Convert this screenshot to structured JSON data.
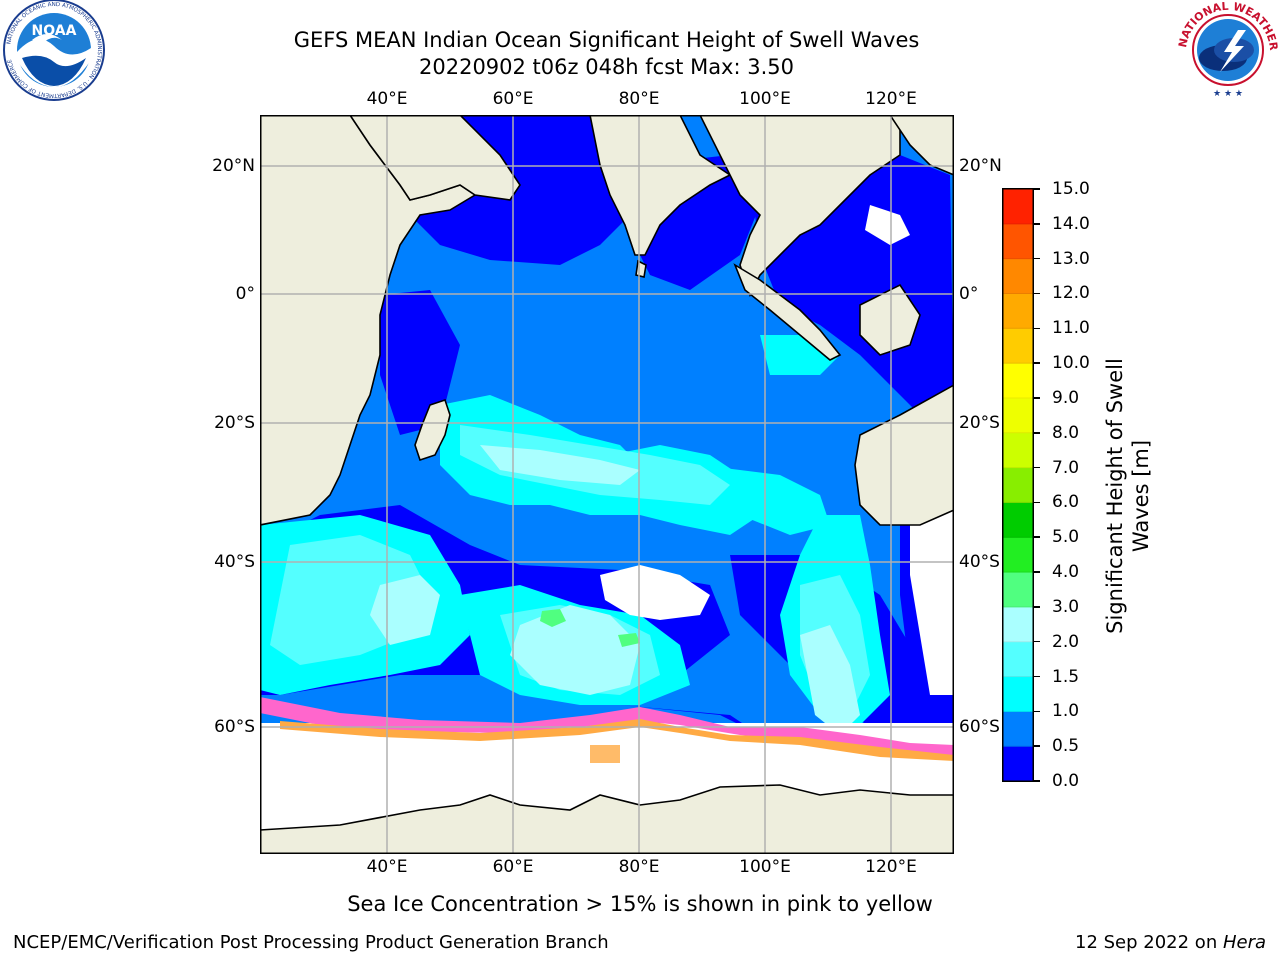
{
  "title": {
    "line1": "GEFS MEAN Indian Ocean Significant Height of Swell Waves",
    "line2": "20220902 t06z 048h fcst   Max: 3.50"
  },
  "logos": {
    "noara": {
      "icon": "noaa-logo-icon",
      "text": "NOAA",
      "ring_text": "NATIONAL OCEANIC AND ATMOSPHERIC ADMINISTRATION · U.S. DEPARTMENT OF COMMERCE"
    },
    "nws": {
      "icon": "nws-logo-icon",
      "ring_text": "NATIONAL WEATHER SERVICE"
    }
  },
  "map": {
    "lon_ticks": [
      {
        "value": 40,
        "label": "40°E"
      },
      {
        "value": 60,
        "label": "60°E"
      },
      {
        "value": 80,
        "label": "80°E"
      },
      {
        "value": 100,
        "label": "100°E"
      },
      {
        "value": 120,
        "label": "120°E"
      }
    ],
    "lat_ticks": [
      {
        "value": 20,
        "label": "20°N"
      },
      {
        "value": 0,
        "label": "0°"
      },
      {
        "value": -20,
        "label": "20°S"
      },
      {
        "value": -40,
        "label": "40°S"
      },
      {
        "value": -60,
        "label": "60°S"
      }
    ],
    "lon_range": [
      20,
      130
    ],
    "lat_range": [
      -75,
      28
    ],
    "colors": {
      "land": "#eeeedd",
      "grid": "#b0b0b0",
      "sea_ice_white": "#ffffff"
    }
  },
  "colorbar": {
    "label_line1": "Significant Height of Swell",
    "label_line2": "Waves [m]",
    "ticks": [
      "0.0",
      "0.5",
      "1.0",
      "1.5",
      "2.0",
      "3.0",
      "4.0",
      "5.0",
      "6.0",
      "7.0",
      "8.0",
      "9.0",
      "10.0",
      "11.0",
      "12.0",
      "13.0",
      "14.0",
      "15.0"
    ],
    "colors": [
      "#0000ff",
      "#0080ff",
      "#00ffff",
      "#54ffff",
      "#aaffff",
      "#50ff80",
      "#22ee22",
      "#00cc00",
      "#88ee00",
      "#ccff00",
      "#eeff00",
      "#ffff00",
      "#ffcc00",
      "#ffaa00",
      "#ff8800",
      "#ff5500",
      "#ff2200",
      "#ff0000"
    ]
  },
  "note": "Sea Ice Concentration > 15% is shown in pink to yellow",
  "footer": {
    "left": "NCEP/EMC/Verification Post Processing Product Generation Branch",
    "right_prefix": "12 Sep 2022 on ",
    "right_italic": "Hera"
  }
}
